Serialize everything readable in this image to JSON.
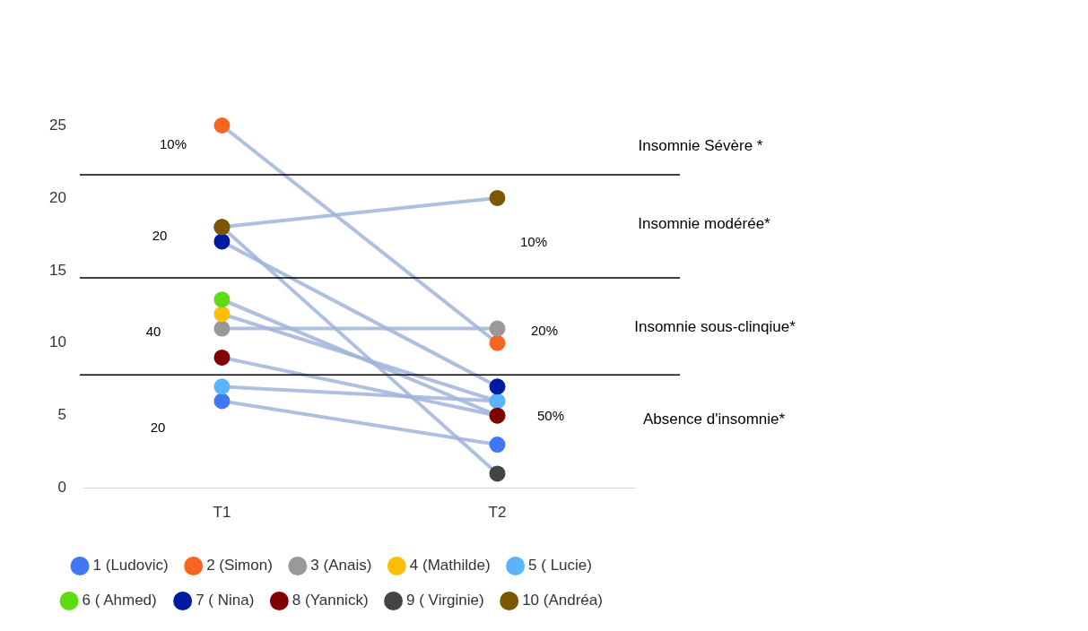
{
  "chart_data": {
    "type": "line",
    "categories": [
      "T1",
      "T2"
    ],
    "ylim": [
      0,
      25
    ],
    "yticks": [
      0,
      5,
      10,
      15,
      20,
      25
    ],
    "grid": false,
    "legend": "bottom",
    "marker": "circle",
    "line_style": "solid",
    "series": [
      {
        "name": "1 (Ludovic)",
        "color": "#3f77f5",
        "values": [
          6,
          3
        ]
      },
      {
        "name": "2 (Simon)",
        "color": "#f8651f",
        "values": [
          25,
          10
        ]
      },
      {
        "name": "3 (Anais)",
        "color": "#999999",
        "values": [
          11,
          11
        ]
      },
      {
        "name": "4 (Mathilde)",
        "color": "#fdbe06",
        "values": [
          12,
          6
        ]
      },
      {
        "name": "5 ( Lucie)",
        "color": "#5cb5fc",
        "values": [
          7,
          6
        ]
      },
      {
        "name": "6 ( Ahmed)",
        "color": "#5cdd13",
        "values": [
          13,
          5
        ]
      },
      {
        "name": "7 ( Nina)",
        "color": "#001aa0",
        "values": [
          17,
          7
        ]
      },
      {
        "name": "8 (Yannick)",
        "color": "#820000",
        "values": [
          9,
          5
        ]
      },
      {
        "name": "9 ( Virginie)",
        "color": "#444444",
        "values": [
          18,
          1
        ]
      },
      {
        "name": "10 (Andréa)",
        "color": "#7b5800",
        "values": [
          18,
          20
        ]
      }
    ],
    "ref_lines": [
      {
        "axis": "y",
        "value": 21.6,
        "color": "#000000"
      },
      {
        "axis": "y",
        "value": 14.5,
        "color": "#000000"
      },
      {
        "axis": "y",
        "value": 7.8,
        "color": "#000000"
      }
    ],
    "annotations": [
      "10%",
      "20",
      "40",
      "20",
      "10%",
      "20%",
      "50%",
      "Insomnie Sévère *",
      "Insomnie modérée*",
      "Insomnie sous-clinqiue*",
      "Absence d'insomnie*"
    ]
  }
}
